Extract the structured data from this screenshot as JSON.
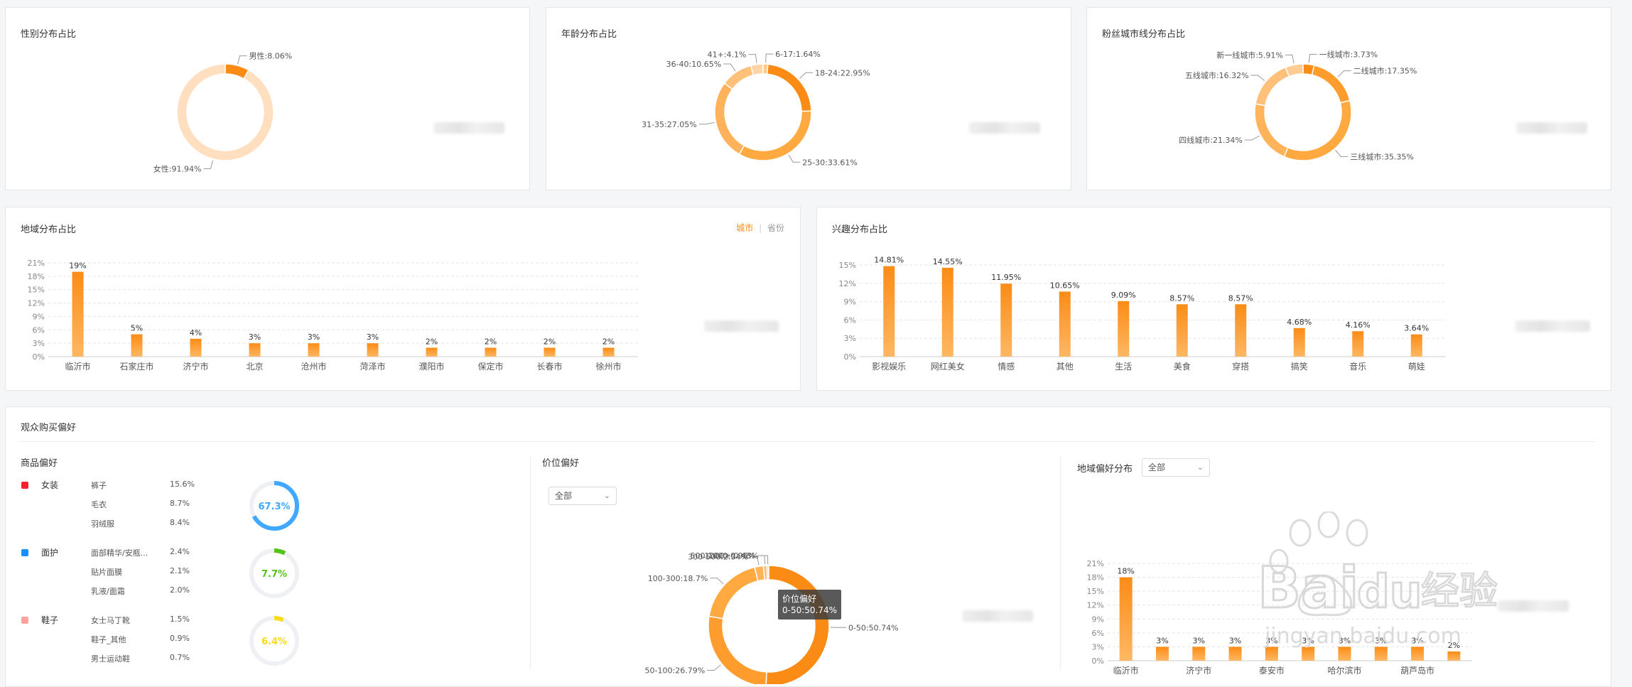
{
  "gender": {
    "title": "性别分布占比",
    "chart_data": {
      "type": "pie",
      "labels": [
        "男性",
        "女性"
      ],
      "values": [
        8.06,
        91.94
      ],
      "label_texts": [
        "男性:8.06%",
        "女性:91.94%"
      ],
      "colors": [
        "#fa8c16",
        "#ffdfbf"
      ]
    }
  },
  "age": {
    "title": "年龄分布占比",
    "chart_data": {
      "type": "pie",
      "labels": [
        "6-17",
        "18-24",
        "25-30",
        "31-35",
        "36-40",
        "41+"
      ],
      "values": [
        1.64,
        22.95,
        33.61,
        27.05,
        10.65,
        4.1
      ],
      "label_texts": [
        "6-17:1.64%",
        "18-24:22.95%",
        "25-30:33.61%",
        "31-35:27.05%",
        "36-40:10.65%",
        "41+:4.1%"
      ],
      "colors": [
        "#ffc98a",
        "#fa8c16",
        "#ffa940",
        "#ffb25c",
        "#ffc07a",
        "#ffd4a6"
      ]
    }
  },
  "city_tier": {
    "title": "粉丝城市线分布占比",
    "chart_data": {
      "type": "pie",
      "labels": [
        "一线城市",
        "二线城市",
        "三线城市",
        "四线城市",
        "五线城市",
        "新一线城市"
      ],
      "values": [
        3.73,
        17.35,
        35.35,
        21.34,
        16.32,
        5.91
      ],
      "label_texts": [
        "一线城市:3.73%",
        "二线城市:17.35%",
        "三线城市:35.35%",
        "四线城市:21.34%",
        "五线城市:16.32%",
        "新一线城市:5.91%"
      ],
      "colors": [
        "#fa8c16",
        "#ff9c2e",
        "#ffa940",
        "#ffb45c",
        "#ffc07a",
        "#ffcc94"
      ]
    }
  },
  "region": {
    "title": "地域分布占比",
    "switch_city": "城市",
    "switch_sep": "|",
    "switch_province": "省份",
    "chart_data": {
      "type": "bar",
      "categories": [
        "临沂市",
        "石家庄市",
        "济宁市",
        "北京",
        "沧州市",
        "菏泽市",
        "濮阳市",
        "保定市",
        "长春市",
        "徐州市"
      ],
      "values": [
        19,
        5,
        4,
        3,
        3,
        3,
        2,
        2,
        2,
        2
      ],
      "value_labels": [
        "19%",
        "5%",
        "4%",
        "3%",
        "3%",
        "3%",
        "2%",
        "2%",
        "2%",
        "2%"
      ],
      "ylim": [
        0,
        21
      ],
      "yticks": [
        "0%",
        "3%",
        "6%",
        "9%",
        "12%",
        "15%",
        "18%",
        "21%"
      ]
    }
  },
  "interest": {
    "title": "兴趣分布占比",
    "chart_data": {
      "type": "bar",
      "categories": [
        "影视娱乐",
        "网红美女",
        "情感",
        "其他",
        "生活",
        "美食",
        "穿搭",
        "搞笑",
        "音乐",
        "萌娃"
      ],
      "values": [
        14.81,
        14.55,
        11.95,
        10.65,
        9.09,
        8.57,
        8.57,
        4.68,
        4.16,
        3.64
      ],
      "value_labels": [
        "14.81%",
        "14.55%",
        "11.95%",
        "10.65%",
        "9.09%",
        "8.57%",
        "8.57%",
        "4.68%",
        "4.16%",
        "3.64%"
      ],
      "ylim": [
        0,
        15
      ],
      "yticks": [
        "0%",
        "3%",
        "6%",
        "9%",
        "12%",
        "15%"
      ]
    }
  },
  "purchase": {
    "title": "观众购买偏好",
    "goods": {
      "title": "商品偏好",
      "categories": [
        {
          "name": "女装",
          "icon": "red-tag-icon",
          "color": "#f5222d",
          "percent": 67.3,
          "percent_label": "67.3%",
          "ring_color": "#40a9ff",
          "items": [
            {
              "name": "裤子",
              "value": "15.6%"
            },
            {
              "name": "毛衣",
              "value": "8.7%"
            },
            {
              "name": "羽绒服",
              "value": "8.4%"
            }
          ]
        },
        {
          "name": "面护",
          "icon": "blue-tag-icon",
          "color": "#1890ff",
          "percent": 7.7,
          "percent_label": "7.7%",
          "ring_color": "#52c41a",
          "items": [
            {
              "name": "面部精华/安瓶...",
              "value": "2.4%"
            },
            {
              "name": "贴片面膜",
              "value": "2.1%"
            },
            {
              "name": "乳液/面霜",
              "value": "2.0%"
            }
          ]
        },
        {
          "name": "鞋子",
          "icon": "peach-tag-icon",
          "color": "#ffa39e",
          "percent": 6.4,
          "percent_label": "6.4%",
          "ring_color": "#fadb14",
          "items": [
            {
              "name": "女士马丁靴",
              "value": "1.5%"
            },
            {
              "name": "鞋子_其他",
              "value": "0.9%"
            },
            {
              "name": "男士运动鞋",
              "value": "0.7%"
            }
          ]
        }
      ]
    },
    "price": {
      "title": "价位偏好",
      "dropdown": "全部",
      "tooltip_title": "价位偏好",
      "tooltip_value": "0-50:50.74%",
      "chart_data": {
        "type": "pie",
        "labels": [
          "0-50",
          "50-100",
          "100-300",
          "300-500",
          "500-1000",
          "1000+"
        ],
        "values": [
          50.74,
          26.79,
          18.7,
          2.34,
          0.95,
          0.48
        ],
        "label_texts": [
          "0-50:50.74%",
          "50-100:26.79%",
          "100-300:18.7%",
          "300-500:2.34%",
          "500-1000:0.95%",
          "1000+:0.48%"
        ],
        "colors": [
          "#fa8c16",
          "#ff9c2e",
          "#ffa940",
          "#ffb45c",
          "#ffc07a",
          "#ffcc94"
        ]
      }
    },
    "region_pref": {
      "title": "地域偏好分布",
      "dropdown": "全部",
      "chart_data": {
        "type": "bar",
        "categories": [
          "临沂市",
          "",
          "济宁市",
          "",
          "泰安市",
          "",
          "哈尔滨市",
          "",
          "葫芦岛市",
          ""
        ],
        "values": [
          18,
          3,
          3,
          3,
          3,
          3,
          3,
          3,
          3,
          2
        ],
        "value_labels": [
          "18%",
          "3%",
          "3%",
          "3%",
          "3%",
          "3%",
          "3%",
          "3%",
          "3%",
          "2%"
        ],
        "ylim": [
          0,
          21
        ],
        "yticks": [
          "0%",
          "3%",
          "6%",
          "9%",
          "12%",
          "15%",
          "18%",
          "21%"
        ]
      }
    }
  }
}
